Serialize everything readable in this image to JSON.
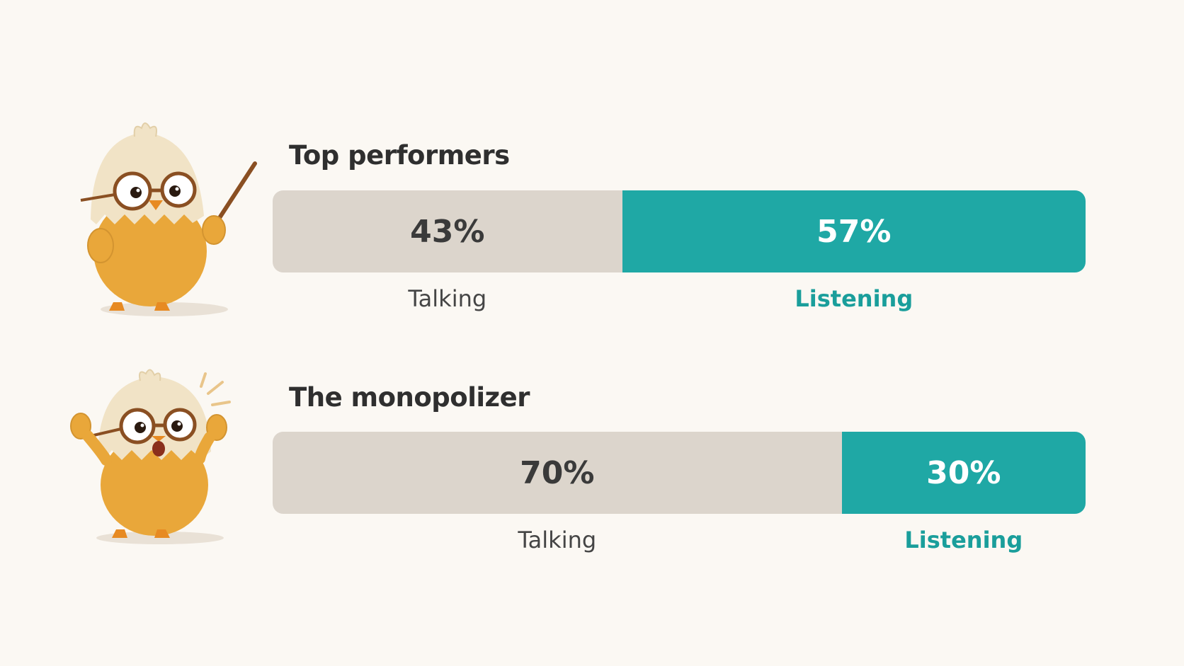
{
  "chart_data": {
    "type": "bar",
    "stacked": true,
    "orientation": "horizontal",
    "categories": [
      "Top performers",
      "The monopolizer"
    ],
    "series": [
      {
        "name": "Talking",
        "values": [
          43,
          70
        ],
        "color": "#dcd5cc"
      },
      {
        "name": "Listening",
        "values": [
          57,
          30
        ],
        "color": "#1fa8a5"
      }
    ],
    "value_labels": {
      "Talking": [
        "43%",
        "70%"
      ],
      "Listening": [
        "57%",
        "30%"
      ]
    },
    "xlim": [
      0,
      100
    ]
  },
  "rows": [
    {
      "title": "Top performers",
      "talk_label": "Talking",
      "listen_label": "Listening",
      "mascot": "chick-teacher-pointer-icon"
    },
    {
      "title": "The monopolizer",
      "talk_label": "Talking",
      "listen_label": "Listening",
      "mascot": "chick-surprised-icon"
    }
  ],
  "colors": {
    "background": "#fbf8f3",
    "talking": "#dcd5cc",
    "listening": "#1fa8a5",
    "listening_text": "#1a9e9b"
  }
}
